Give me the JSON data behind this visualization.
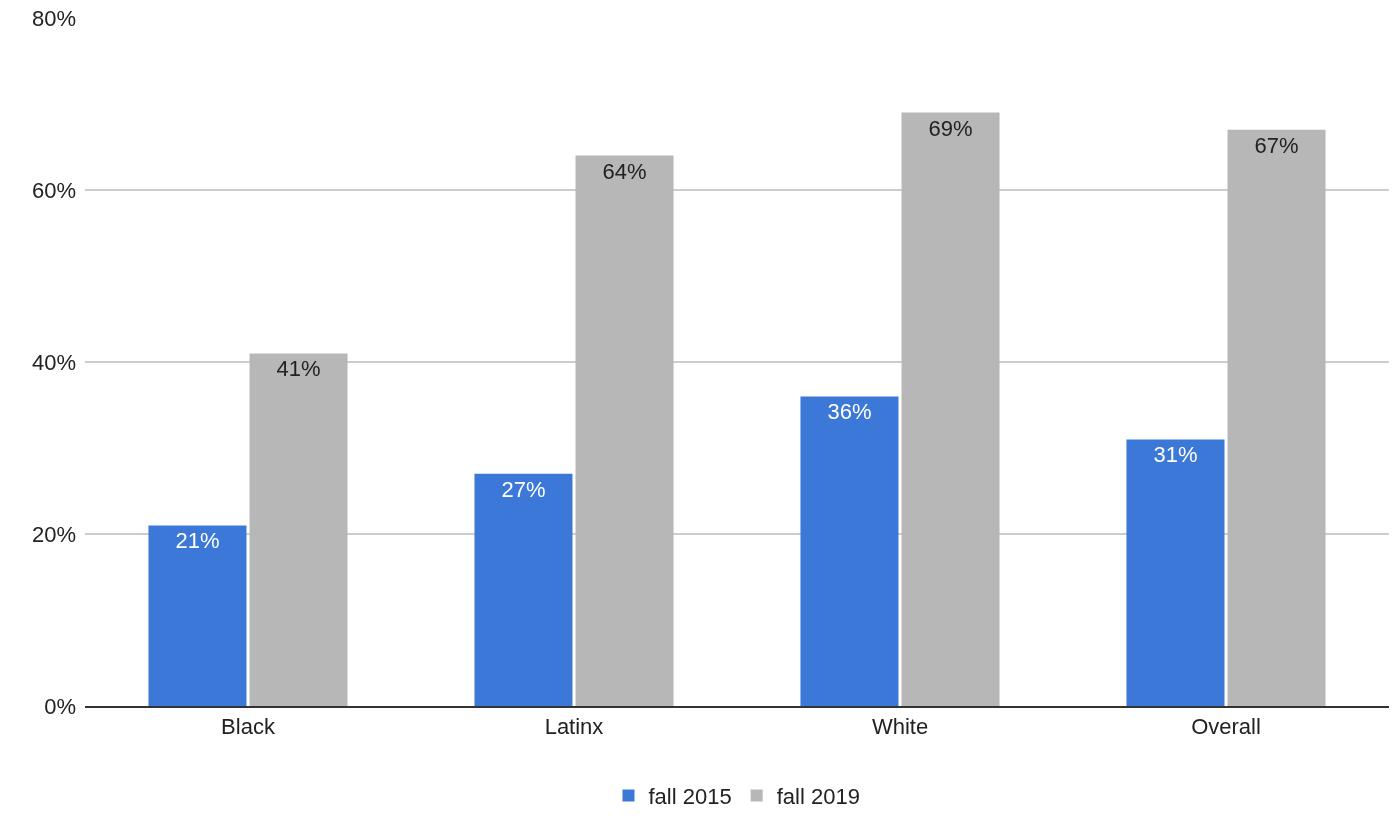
{
  "chart_data": {
    "type": "bar",
    "categories": [
      "Black",
      "Latinx",
      "White",
      "Overall"
    ],
    "series": [
      {
        "name": "fall 2015",
        "color": "#3c78d8",
        "values": [
          21,
          27,
          36,
          31
        ],
        "value_labels": [
          "21%",
          "27%",
          "36%",
          "31%"
        ]
      },
      {
        "name": "fall 2019",
        "color": "#b7b7b7",
        "values": [
          41,
          64,
          69,
          67
        ],
        "value_labels": [
          "41%",
          "64%",
          "69%",
          "67%"
        ]
      }
    ],
    "ylim": [
      0,
      80
    ],
    "yticks": [
      {
        "value": 0,
        "label": "0%"
      },
      {
        "value": 20,
        "label": "20%"
      },
      {
        "value": 40,
        "label": "40%"
      },
      {
        "value": 60,
        "label": "60%"
      },
      {
        "value": 80,
        "label": "80%"
      }
    ],
    "grid": "y",
    "legend": "bottom"
  }
}
